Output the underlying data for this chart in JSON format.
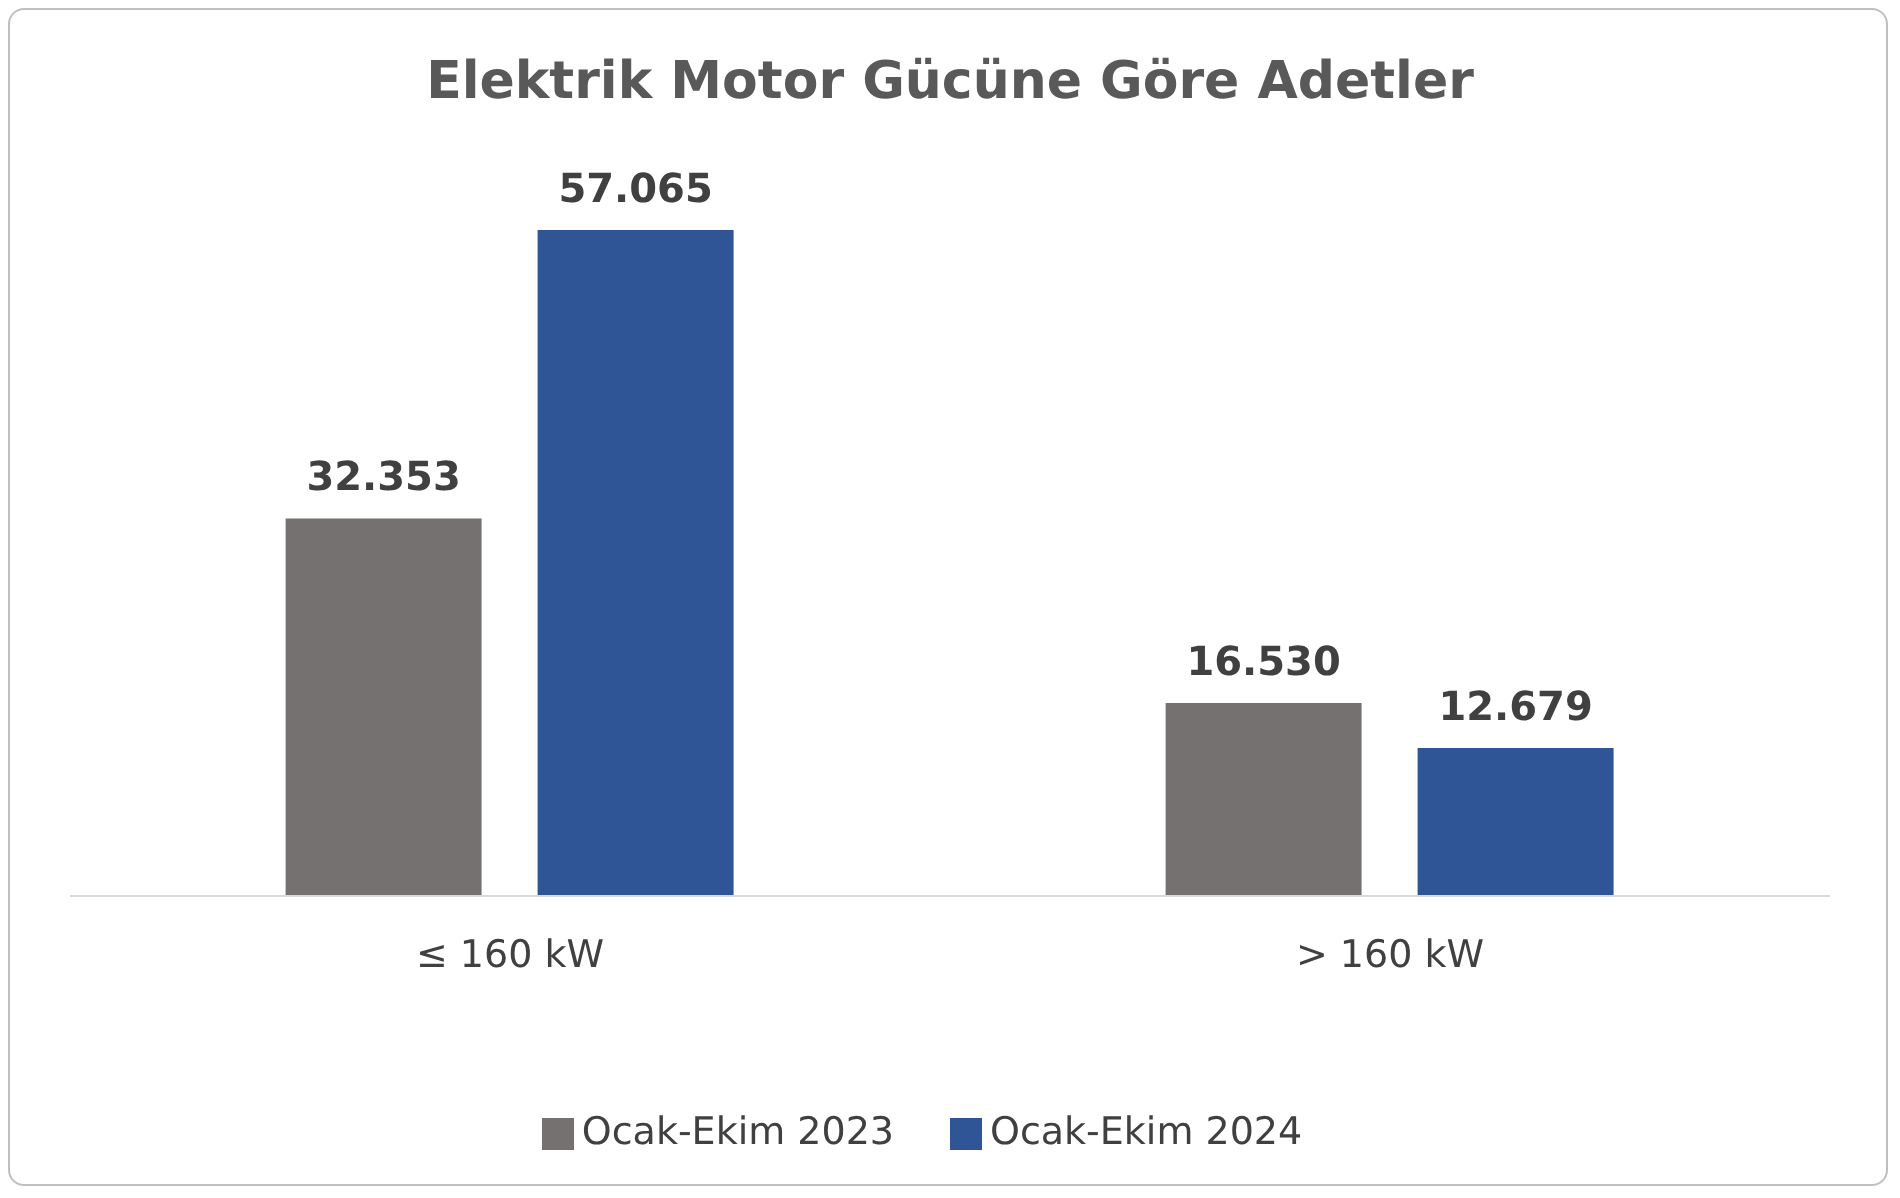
{
  "chart_data": {
    "type": "bar",
    "title": "Elektrik Motor Gücüne Göre Adetler",
    "categories": [
      "≤ 160 kW",
      "> 160 kW"
    ],
    "series": [
      {
        "name": "Ocak-Ekim 2023",
        "color": "#767171",
        "values": [
          32353,
          16530
        ],
        "value_labels": [
          "32.353",
          "16.530"
        ]
      },
      {
        "name": "Ocak-Ekim 2024",
        "color": "#2f5597",
        "values": [
          57065,
          12679
        ],
        "value_labels": [
          "57.065",
          "12.679"
        ]
      }
    ],
    "legend": "bottom"
  }
}
